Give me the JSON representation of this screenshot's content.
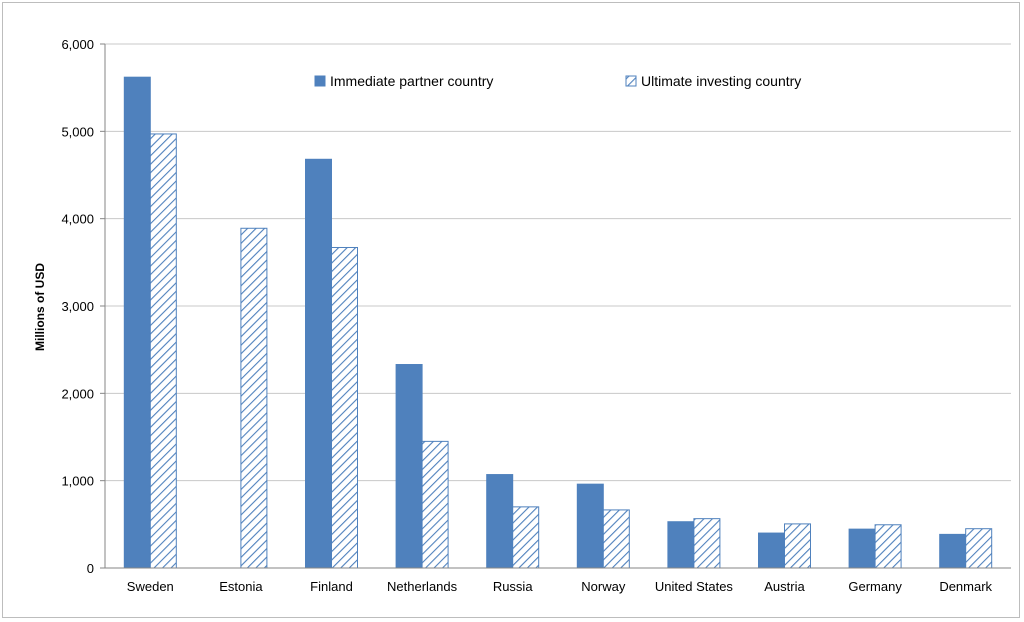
{
  "chart_data": {
    "type": "bar",
    "title": "",
    "xlabel": "",
    "ylabel": "Millions of USD",
    "ylim": [
      0,
      6000
    ],
    "yticks": [
      0,
      1000,
      2000,
      3000,
      4000,
      5000,
      6000
    ],
    "ytick_labels": [
      "0",
      "1,000",
      "2,000",
      "3,000",
      "4,000",
      "5,000",
      "6,000"
    ],
    "grid": true,
    "legend_position": "top-center",
    "categories": [
      "Sweden",
      "Estonia",
      "Finland",
      "Netherlands",
      "Russia",
      "Norway",
      "United States",
      "Austria",
      "Germany",
      "Denmark"
    ],
    "series": [
      {
        "name": "Immediate partner country",
        "style": "solid",
        "color": "#4f81bd",
        "values": [
          5620,
          null,
          4680,
          2330,
          1070,
          960,
          530,
          400,
          445,
          385
        ]
      },
      {
        "name": "Ultimate investing country",
        "style": "hatched",
        "color": "#4f81bd",
        "values": [
          4970,
          3890,
          3670,
          1450,
          700,
          665,
          565,
          505,
          495,
          450
        ]
      }
    ]
  }
}
